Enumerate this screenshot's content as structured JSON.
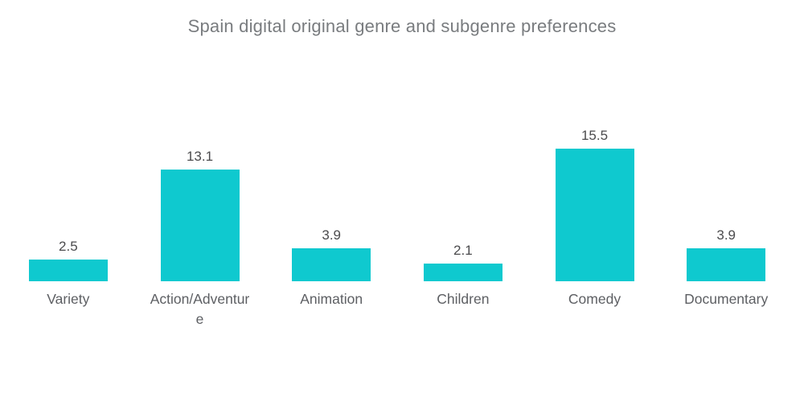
{
  "chart_data": {
    "type": "bar",
    "title": "Spain digital original genre and subgenre preferences",
    "categories": [
      "Variety",
      "Action/Adventure",
      "Animation",
      "Children",
      "Comedy",
      "Documentary"
    ],
    "values": [
      2.5,
      13.1,
      3.9,
      2.1,
      15.5,
      3.9
    ],
    "value_labels": [
      "2.5",
      "13.1",
      "3.9",
      "2.1",
      "15.5",
      "3.9"
    ],
    "xlabel": "",
    "ylabel": "",
    "ylim": [
      0,
      17
    ],
    "grid": false,
    "legend": false,
    "axes_visible": false,
    "bar_color": "#0FC9CF",
    "title_color": "#797c7f",
    "value_label_color": "#4b4b4d",
    "category_label_color": "#5d5f63",
    "background_color": "#ffffff"
  }
}
